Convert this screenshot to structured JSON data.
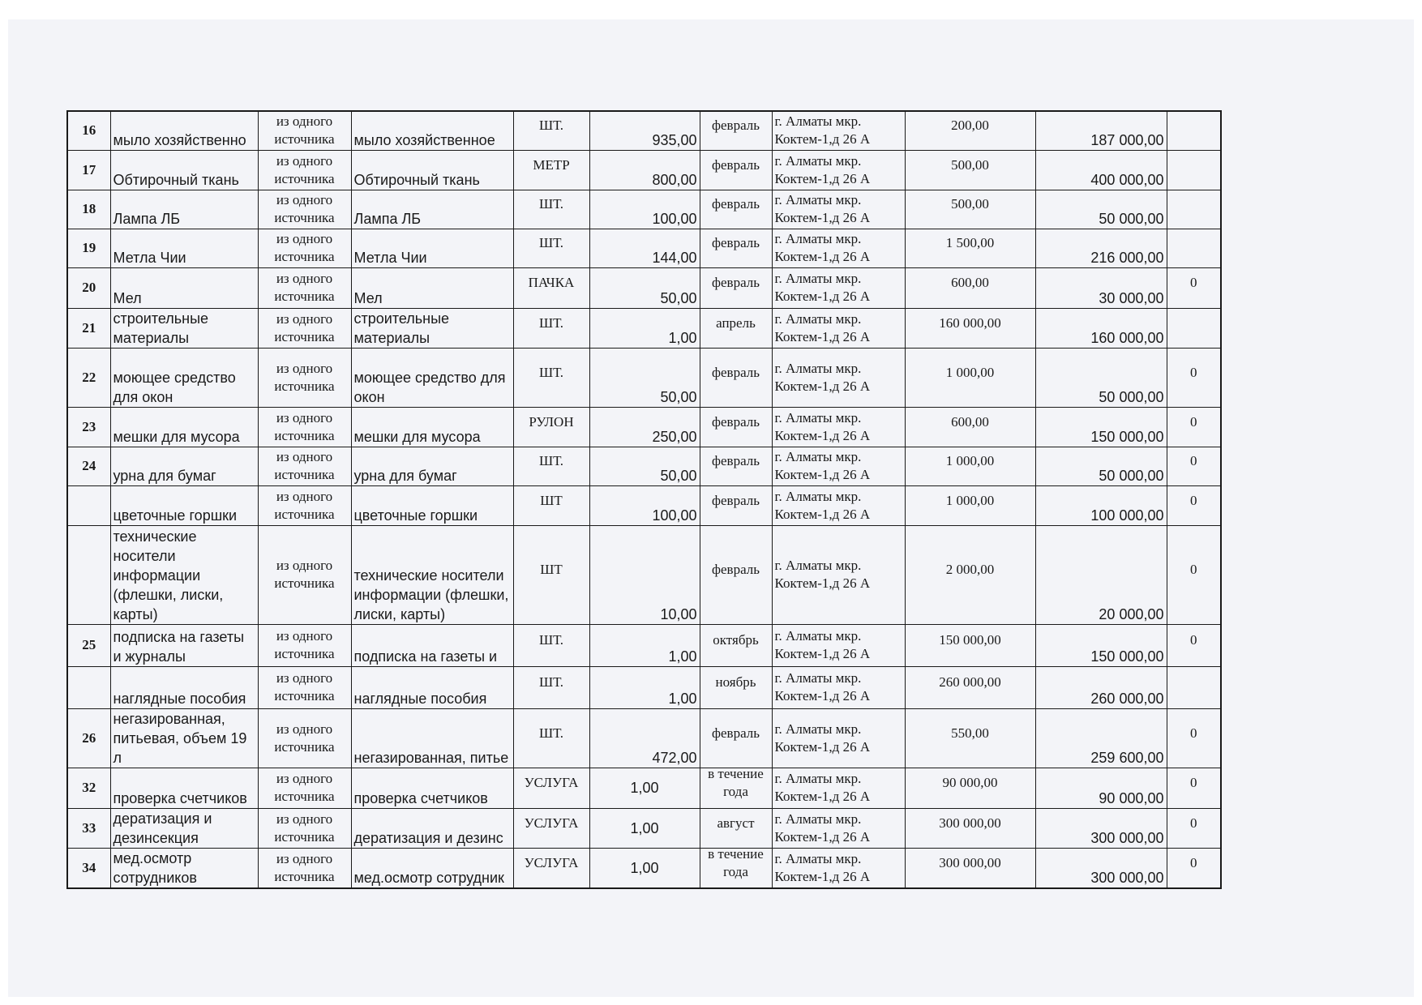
{
  "table": {
    "rows": [
      {
        "num": "16",
        "name": "мыло хозяйственно",
        "method": "из одного источника",
        "desc": "мыло хозяйственное",
        "unit": "ШТ.",
        "qty": "935,00",
        "month": "февраль",
        "place": "г. Алматы мкр. Коктем-1,д 26 А",
        "price": "200,00",
        "sum": "187 000,00",
        "extra": ""
      },
      {
        "num": "17",
        "name": "Обтирочный ткань",
        "method": "из одного источника",
        "desc": "Обтирочный ткань",
        "unit": "МЕТР",
        "qty": "800,00",
        "month": "февраль",
        "place": "г. Алматы мкр. Коктем-1,д 26 А",
        "price": "500,00",
        "sum": "400 000,00",
        "extra": ""
      },
      {
        "num": "18",
        "name": "Лампа ЛБ",
        "method": "из одного источника",
        "desc": "Лампа ЛБ",
        "unit": "ШТ.",
        "qty": "100,00",
        "month": "февраль",
        "place": "г. Алматы мкр. Коктем-1,д 26 А",
        "price": "500,00",
        "sum": "50 000,00",
        "extra": ""
      },
      {
        "num": "19",
        "name": "Метла Чии",
        "method": "из одного источника",
        "desc": "Метла Чии",
        "unit": "ШТ.",
        "qty": "144,00",
        "month": "февраль",
        "place": "г. Алматы мкр. Коктем-1,д 26 А",
        "price": "1 500,00",
        "sum": "216 000,00",
        "extra": ""
      },
      {
        "num": "20",
        "name": "Мел",
        "method": "из одного источника",
        "desc": "Мел",
        "unit": "ПАЧКА",
        "qty": "50,00",
        "month": "февраль",
        "place": "г. Алматы мкр. Коктем-1,д 26 А",
        "price": "600,00",
        "sum": "30 000,00",
        "extra": "0"
      },
      {
        "num": "21",
        "name": "строительные материалы",
        "method": "из одного источника",
        "desc": "строительные материалы",
        "unit": "ШТ.",
        "qty": "1,00",
        "month": "апрель",
        "place": "г. Алматы мкр. Коктем-1,д 26 А",
        "price": "160 000,00",
        "sum": "160 000,00",
        "extra": ""
      },
      {
        "num": "22",
        "name": "моющее средство для окон",
        "method": "из одного источника",
        "desc": "моющее средство для окон",
        "unit": "ШТ.",
        "qty": "50,00",
        "month": "февраль",
        "place": "г. Алматы мкр. Коктем-1,д 26 А",
        "price": "1 000,00",
        "sum": "50 000,00",
        "extra": "0"
      },
      {
        "num": "23",
        "name": "мешки  для мусора",
        "method": "из одного источника",
        "desc": "мешки  для мусора",
        "unit": "РУЛОН",
        "qty": "250,00",
        "month": "февраль",
        "place": "г. Алматы мкр. Коктем-1,д 26 А",
        "price": "600,00",
        "sum": "150 000,00",
        "extra": "0"
      },
      {
        "num": "24",
        "name": "урна  для бумаг",
        "method": "из одного источника",
        "desc": "урна  для бумаг",
        "unit": "ШТ.",
        "qty": "50,00",
        "month": "февраль",
        "place": "г. Алматы мкр. Коктем-1,д 26 А",
        "price": "1 000,00",
        "sum": "50 000,00",
        "extra": "0"
      },
      {
        "num": "",
        "name": "цветочные горшки",
        "method": "из одного источника",
        "desc": "цветочные горшки",
        "unit": "ШТ",
        "qty": "100,00",
        "month": "февраль",
        "place": "г. Алматы мкр. Коктем-1,д 26 А",
        "price": "1 000,00",
        "sum": "100 000,00",
        "extra": "0"
      },
      {
        "num": "",
        "name": "технические носители информации (флешки, лиски, карты)",
        "method": "из одного источника",
        "desc": "технические носители информации (флешки, лиски, карты)",
        "unit": "ШТ",
        "qty": "10,00",
        "month": "февраль",
        "place": "г. Алматы мкр. Коктем-1,д 26 А",
        "price": "2 000,00",
        "sum": "20 000,00",
        "extra": "0"
      },
      {
        "num": "25",
        "name": "подписка на газеты и журналы",
        "method": "из одного источника",
        "desc": "подписка на газеты и",
        "unit": "ШТ.",
        "qty": "1,00",
        "month": "октябрь",
        "place": "г. Алматы мкр. Коктем-1,д 26 А",
        "price": "150 000,00",
        "sum": "150 000,00",
        "extra": "0"
      },
      {
        "num": "",
        "name": "наглядные пособия",
        "method": "из одного источника",
        "desc": "наглядные пособия",
        "unit": "ШТ.",
        "qty": "1,00",
        "month": "ноябрь",
        "place": "г. Алматы мкр. Коктем-1,д 26 А",
        "price": "260 000,00",
        "sum": "260 000,00",
        "extra": ""
      },
      {
        "num": "26",
        "name": "негазированная, питьевая, объем 19 л",
        "method": "из одного источника",
        "desc": "негазированная, питье",
        "unit": "ШТ.",
        "qty": "472,00",
        "month": "февраль",
        "place": "г. Алматы мкр. Коктем-1,д 26 А",
        "price": "550,00",
        "sum": "259 600,00",
        "extra": "0"
      },
      {
        "num": "32",
        "name": "проверка счетчиков",
        "method": "из одного источника",
        "desc": "проверка счетчиков",
        "unit": "УСЛУГА",
        "qty": "1,00",
        "month": "в течение года",
        "place": "г. Алматы мкр. Коктем-1,д 26 А",
        "price": "90 000,00",
        "sum": "90 000,00",
        "extra": "0"
      },
      {
        "num": "33",
        "name": "дератизация и дезинсекция",
        "method": "из одного источника",
        "desc": "дератизация и дезинс",
        "unit": "УСЛУГА",
        "qty": "1,00",
        "month": "август",
        "place": "г. Алматы мкр. Коктем-1,д 26 А",
        "price": "300 000,00",
        "sum": "300 000,00",
        "extra": "0"
      },
      {
        "num": "34",
        "name": "мед.осмотр сотрудников",
        "method": "из одного источника",
        "desc": "мед.осмотр сотрудник",
        "unit": "УСЛУГА",
        "qty": "1,00",
        "month": "в течение года",
        "place": "г. Алматы мкр. Коктем-1,д 26 А",
        "price": "300 000,00",
        "sum": "300 000,00",
        "extra": "0"
      }
    ]
  }
}
